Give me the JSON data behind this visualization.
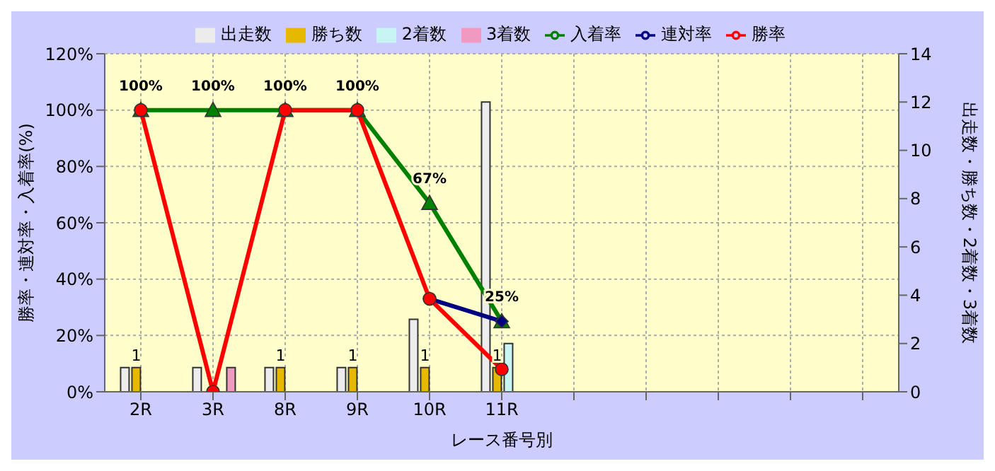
{
  "chart_data": {
    "type": "bar",
    "xlabel": "レース番号別",
    "ylabel": "勝率・連対率・入着率(%)",
    "y2label": "出走数・勝ち数・2着数・3着数",
    "categories": [
      "2R",
      "3R",
      "8R",
      "9R",
      "10R",
      "11R",
      null,
      null,
      null,
      null,
      null
    ],
    "series": [
      {
        "name": "出走数",
        "axis": "y2",
        "color": "#ececec",
        "values": [
          1,
          1,
          1,
          1,
          3,
          12,
          null,
          null,
          null,
          null,
          null
        ]
      },
      {
        "name": "勝ち数",
        "axis": "y2",
        "color": "#e6b800",
        "values": [
          1,
          0,
          1,
          1,
          1,
          1,
          null,
          null,
          null,
          null,
          null
        ],
        "value_labels": [
          "1",
          null,
          "1",
          "1",
          "1",
          "1",
          null,
          null,
          null,
          null,
          null
        ]
      },
      {
        "name": "2着数",
        "axis": "y2",
        "color": "#c8f4f4",
        "values": [
          0,
          0,
          0,
          0,
          0,
          2,
          null,
          null,
          null,
          null,
          null
        ]
      },
      {
        "name": "3着数",
        "axis": "y2",
        "color": "#f09ac0",
        "values": [
          0,
          1,
          0,
          0,
          0,
          0,
          null,
          null,
          null,
          null,
          null
        ]
      },
      {
        "name": "入着率",
        "type": "line",
        "color": "#008000",
        "marker": "triangle",
        "values": [
          100,
          100,
          100,
          100,
          67,
          25,
          null,
          null,
          null,
          null,
          null
        ],
        "value_labels": [
          "100%",
          "100%",
          "100%",
          "100%",
          "67%",
          "25%",
          null,
          null,
          null,
          null,
          null
        ]
      },
      {
        "name": "連対率",
        "type": "line",
        "color": "#000080",
        "marker": "diamond",
        "values": [
          null,
          null,
          null,
          null,
          33,
          25,
          null,
          null,
          null,
          null,
          null
        ]
      },
      {
        "name": "勝率",
        "type": "line",
        "color": "#ff0000",
        "marker": "circle",
        "values": [
          100,
          0,
          100,
          100,
          33,
          8,
          null,
          null,
          null,
          null,
          null
        ]
      }
    ],
    "ylim": [
      0,
      120
    ],
    "yticks": [
      {
        "value": 0,
        "label": "0%"
      },
      {
        "value": 20,
        "label": "20%"
      },
      {
        "value": 40,
        "label": "40%"
      },
      {
        "value": 60,
        "label": "60%"
      },
      {
        "value": 80,
        "label": "80%"
      },
      {
        "value": 100,
        "label": "100%"
      },
      {
        "value": 120,
        "label": "120%"
      }
    ],
    "y2lim": [
      0,
      14
    ],
    "y2ticks": [
      0,
      2,
      4,
      6,
      8,
      10,
      12,
      14
    ],
    "grid": true,
    "legend": "top"
  }
}
